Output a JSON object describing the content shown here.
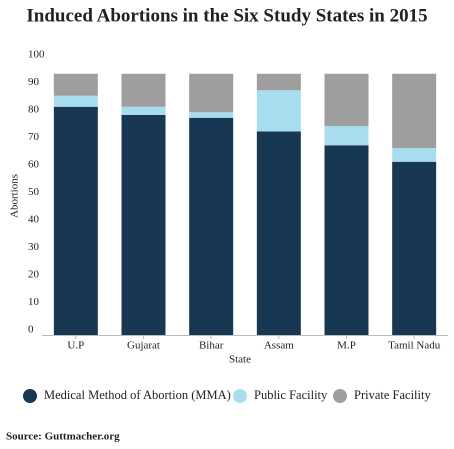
{
  "chart_data": {
    "type": "stacked_bar",
    "title": "Induced Abortions in the Six Study States in 2015",
    "x_label": "State",
    "y_label": "Abortions",
    "categories": [
      "U.P",
      "Gujarat",
      "Bihar",
      "Assam",
      "M.P",
      "Tamil Nadu"
    ],
    "series": [
      {
        "name": "Medical Method of Abortion (MMA)",
        "color": "#173753",
        "values": [
          83,
          80,
          79,
          74,
          69,
          63
        ]
      },
      {
        "name": "Public Facility",
        "color": "#a8dcef",
        "values": [
          4,
          3,
          2,
          15,
          7,
          5
        ]
      },
      {
        "name": "Private Facility",
        "color": "#9e9e9e",
        "values": [
          8,
          12,
          14,
          6,
          19,
          27
        ]
      }
    ],
    "ylim": [
      0,
      100
    ],
    "yticks": [
      0,
      10,
      20,
      30,
      40,
      50,
      60,
      70,
      80,
      90,
      100
    ],
    "grid": false,
    "source": "Source: Guttmacher.org"
  }
}
